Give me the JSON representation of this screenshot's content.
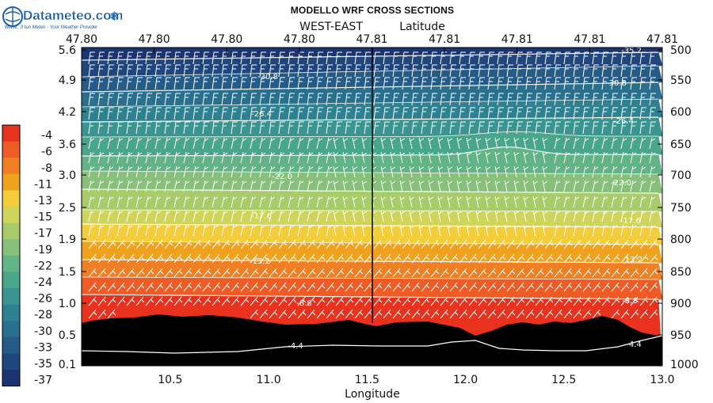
{
  "logo": {
    "brand": "Datameteo.com",
    "prefix": "www.",
    "tagline": "Il tuo Meteo - Your Weather Provider"
  },
  "title": "MODELLO WRF CROSS SECTIONS",
  "chart_data": {
    "type": "heatmap",
    "title": "MODELLO WRF CROSS SECTIONS",
    "subtitle": "WEST-EAST",
    "xlabel": "Longitude",
    "top_xlabel": "Latitude",
    "x_ticks": [
      "10.5",
      "11.0",
      "11.5",
      "12.0",
      "12.5",
      "13.0"
    ],
    "top_x_ticks": [
      "47.80",
      "47.80",
      "47.80",
      "47.80",
      "47.81",
      "47.81",
      "47.81",
      "47.81",
      "47.81"
    ],
    "left_y_ticks": [
      "5.6",
      "4.9",
      "4.2",
      "3.6",
      "3.0",
      "2.5",
      "1.9",
      "1.5",
      "1.0",
      "0.5",
      "0.1"
    ],
    "right_y_ticks": [
      "500",
      "550",
      "600",
      "650",
      "700",
      "750",
      "800",
      "850",
      "900",
      "950",
      "1000"
    ],
    "colorbar": {
      "labels": [
        "-4",
        "-6",
        "-8",
        "-11",
        "-13",
        "-15",
        "-17",
        "-19",
        "-22",
        "-24",
        "-26",
        "-28",
        "-30",
        "-33",
        "-35",
        "-37"
      ],
      "colors": [
        "#e8321e",
        "#ee5b24",
        "#f07e22",
        "#f0a21f",
        "#f3cd3a",
        "#cfd45a",
        "#a8cc6a",
        "#86c07a",
        "#62b486",
        "#49a68a",
        "#3a9590",
        "#2e8191",
        "#296f8e",
        "#255b87",
        "#20477d",
        "#1c3470"
      ]
    },
    "contour_labels": [
      "-35.2",
      "-30.8",
      "-30.8",
      "-26.4",
      "-26.4",
      "-22.0",
      "-22.0",
      "-17.6",
      "-17.6",
      "-13.2",
      "-13.2",
      "-8.8",
      "-8.8",
      "-4.4",
      "-4.4"
    ],
    "grid": false
  }
}
